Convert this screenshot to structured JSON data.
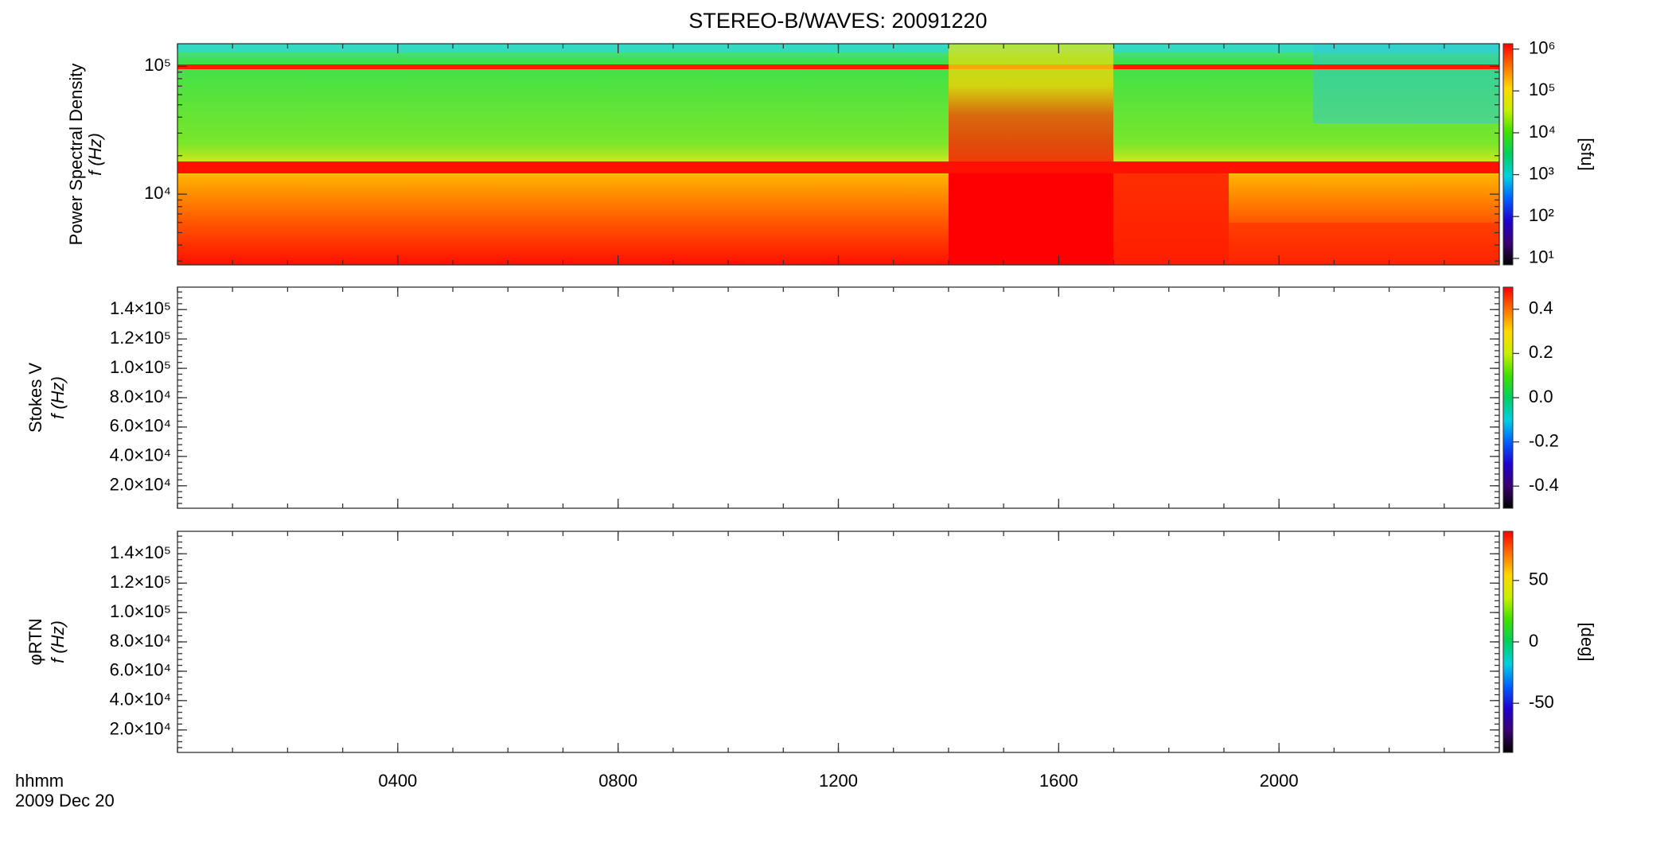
{
  "chart_data": [
    {
      "type": "heatmap",
      "title": "STEREO-B/WAVES: 20091220",
      "ylabel": [
        "Power Spectral Density",
        "f (Hz)"
      ],
      "yscale": "log",
      "ylim": [
        2800,
        150000
      ],
      "yticks": [
        {
          "value": 10000,
          "label": "10⁴"
        },
        {
          "value": 100000,
          "label": "10⁵"
        }
      ],
      "colormap": "rainbow",
      "colorbar": {
        "scale": "log",
        "label": "[sfu]",
        "zlim": [
          7,
          1340000
        ],
        "zticks": [
          {
            "value": 10,
            "label": "10¹"
          },
          {
            "value": 100,
            "label": "10²"
          },
          {
            "value": 1000,
            "label": "10³"
          },
          {
            "value": 10000,
            "label": "10⁴"
          },
          {
            "value": 100000,
            "label": "10⁵"
          },
          {
            "value": 1000000,
            "label": "10⁶"
          }
        ]
      }
    },
    {
      "type": "heatmap",
      "ylabel": [
        "Stokes V",
        "f (Hz)"
      ],
      "yscale": "linear",
      "ylim": [
        4700,
        155300
      ],
      "yticks": [
        {
          "value": 20000,
          "label": "2.0×10⁴"
        },
        {
          "value": 40000,
          "label": "4.0×10⁴"
        },
        {
          "value": 60000,
          "label": "6.0×10⁴"
        },
        {
          "value": 80000,
          "label": "8.0×10⁴"
        },
        {
          "value": 100000,
          "label": "1.0×10⁵"
        },
        {
          "value": 120000,
          "label": "1.2×10⁵"
        },
        {
          "value": 140000,
          "label": "1.4×10⁵"
        }
      ],
      "colormap": "rainbow",
      "colorbar": {
        "scale": "linear",
        "zlim": [
          -0.5,
          0.5
        ],
        "zticks": [
          -0.4,
          -0.2,
          {
            "value": 0,
            "label": "0.0"
          },
          0.2,
          0.4
        ]
      }
    },
    {
      "type": "heatmap",
      "ylabel": [
        "φRTN",
        "f (Hz)"
      ],
      "yscale": "linear",
      "ylim": [
        4700,
        155300
      ],
      "yticks": [
        {
          "value": 20000,
          "label": "2.0×10⁴"
        },
        {
          "value": 40000,
          "label": "4.0×10⁴"
        },
        {
          "value": 60000,
          "label": "6.0×10⁴"
        },
        {
          "value": 80000,
          "label": "8.0×10⁴"
        },
        {
          "value": 100000,
          "label": "1.0×10⁵"
        },
        {
          "value": 120000,
          "label": "1.2×10⁵"
        },
        {
          "value": 140000,
          "label": "1.4×10⁵"
        }
      ],
      "colormap": "rainbow",
      "colorbar": {
        "scale": "linear",
        "label": "[deg]",
        "zlim": [
          -90,
          90
        ],
        "zticks": [
          -50,
          0,
          50
        ]
      },
      "xlim": [
        0,
        24
      ],
      "xticks": [
        {
          "value": 4,
          "label": "0400"
        },
        {
          "value": 8,
          "label": "0800"
        },
        {
          "value": 12,
          "label": "1200"
        },
        {
          "value": 16,
          "label": "1600"
        },
        {
          "value": 20,
          "label": "2000"
        }
      ],
      "xlabel": [
        "hhmm",
        "2009 Dec 20"
      ]
    }
  ]
}
